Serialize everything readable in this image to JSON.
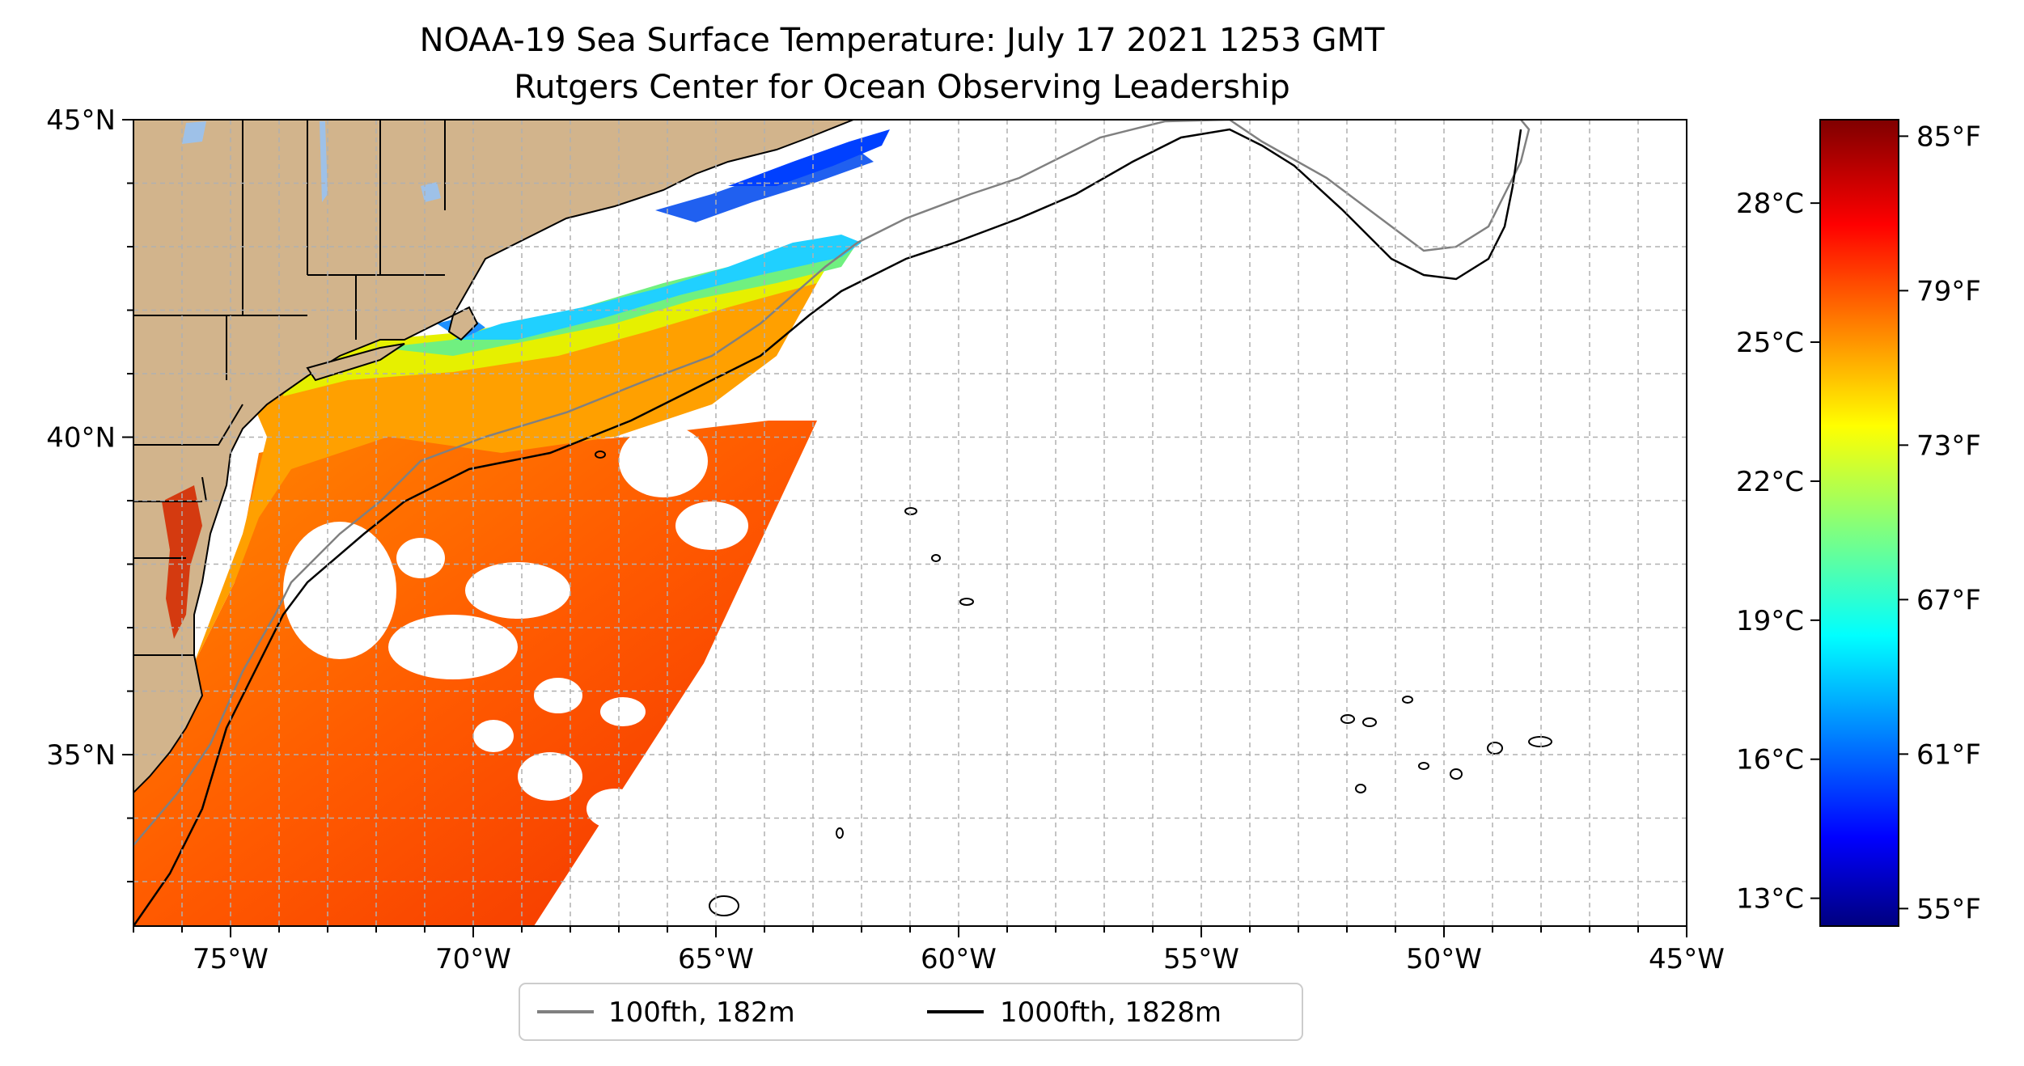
{
  "title": {
    "line1": "NOAA-19 Sea Surface Temperature: July 17 2021 1253 GMT",
    "line2": "Rutgers Center for Ocean Observing Leadership"
  },
  "map": {
    "lon_range": [
      -77,
      -45
    ],
    "lat_range": [
      32.3,
      45
    ],
    "lon_ticks": [
      {
        "value": -75,
        "label": "75°W"
      },
      {
        "value": -70,
        "label": "70°W"
      },
      {
        "value": -65,
        "label": "65°W"
      },
      {
        "value": -60,
        "label": "60°W"
      },
      {
        "value": -55,
        "label": "55°W"
      },
      {
        "value": -50,
        "label": "50°W"
      },
      {
        "value": -45,
        "label": "45°W"
      }
    ],
    "lat_ticks": [
      {
        "value": 35,
        "label": "35°N"
      },
      {
        "value": 40,
        "label": "40°N"
      },
      {
        "value": 45,
        "label": "45°N"
      }
    ],
    "gridlines": true,
    "colors": {
      "land": "#d2b48c",
      "lakes": "#9ec1e8",
      "no_data": "#ffffff"
    }
  },
  "legend": {
    "placement": "bottom-center",
    "items": [
      {
        "label": "100fth, 182m",
        "color": "#808080"
      },
      {
        "label": "1000fth, 1828m",
        "color": "#000000"
      }
    ]
  },
  "colorbar": {
    "colormap": "jet",
    "range_c": [
      12.4,
      29.8
    ],
    "celsius_ticks": [
      {
        "value": 13,
        "label": "13°C"
      },
      {
        "value": 16,
        "label": "16°C"
      },
      {
        "value": 19,
        "label": "19°C"
      },
      {
        "value": 22,
        "label": "22°C"
      },
      {
        "value": 25,
        "label": "25°C"
      },
      {
        "value": 28,
        "label": "28°C"
      }
    ],
    "fahrenheit_ticks": [
      {
        "value": 55,
        "label": "55°F"
      },
      {
        "value": 61,
        "label": "61°F"
      },
      {
        "value": 67,
        "label": "67°F"
      },
      {
        "value": 73,
        "label": "73°F"
      },
      {
        "value": 79,
        "label": "79°F"
      },
      {
        "value": 85,
        "label": "85°F"
      }
    ]
  }
}
